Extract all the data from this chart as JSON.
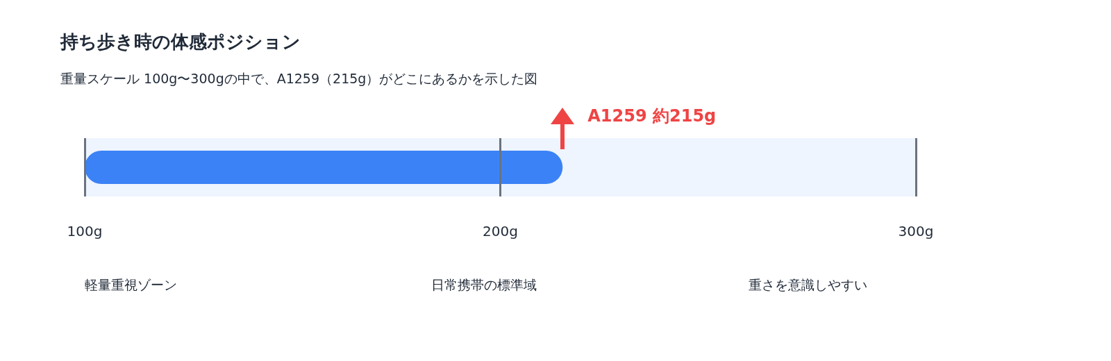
{
  "chart_data": {
    "type": "bar",
    "orientation": "horizontal",
    "title": "持ち歩き時の体感ポジション",
    "subtitle": "重量スケール 100g〜300gの中で、A1259（215g）がどこにあるかを示した図",
    "categories": [
      null
    ],
    "values": [
      215
    ],
    "color": "#3b82f6",
    "xlim": [
      100,
      300
    ],
    "xticks": [
      {
        "value": 100,
        "label": "100g"
      },
      {
        "value": 200,
        "label": "200g"
      },
      {
        "value": 300,
        "label": "300g"
      }
    ],
    "grid": "x",
    "bands": [
      {
        "axis": "x",
        "from": 100,
        "to": 300,
        "color": "#eef5fe"
      }
    ],
    "annotations": [
      "A1259 約215g",
      "軽量重視ゾーン",
      "日常携帯の標準域",
      "重さを意識しやすい"
    ]
  }
}
